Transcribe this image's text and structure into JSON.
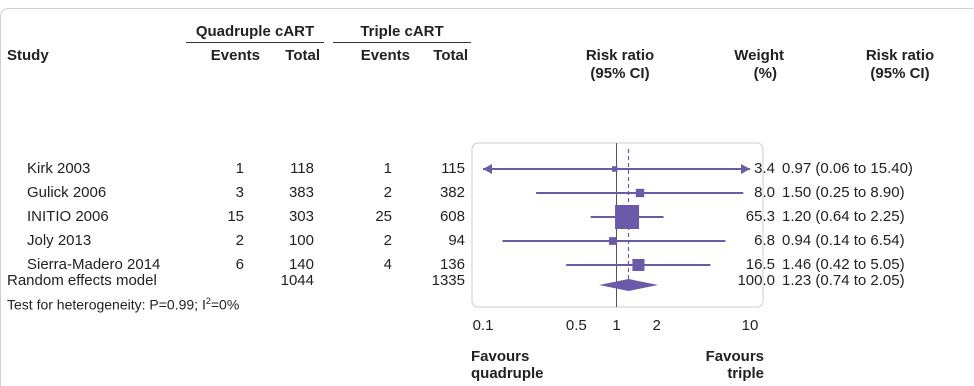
{
  "groups": [
    {
      "label": "Quadruple cART"
    },
    {
      "label": "Triple cART"
    }
  ],
  "headers": {
    "study": "Study",
    "events": "Events",
    "total": "Total",
    "rr_line1": "Risk ratio",
    "rr_line2": "(95% CI)",
    "weight_line1": "Weight",
    "weight_line2": "(%)",
    "rrci_line1": "Risk ratio",
    "rrci_line2": "(95% CI)"
  },
  "rows": [
    {
      "study": "Kirk 2003",
      "q_events": "1",
      "q_total": "118",
      "t_events": "1",
      "t_total": "115",
      "weight": "3.4",
      "ci_text": "0.97 (0.06 to 15.40)"
    },
    {
      "study": "Gulick 2006",
      "q_events": "3",
      "q_total": "383",
      "t_events": "2",
      "t_total": "382",
      "weight": "8.0",
      "ci_text": "1.50 (0.25 to 8.90)"
    },
    {
      "study": "INITIO 2006",
      "q_events": "15",
      "q_total": "303",
      "t_events": "25",
      "t_total": "608",
      "weight": "65.3",
      "ci_text": "1.20 (0.64 to 2.25)"
    },
    {
      "study": "Joly 2013",
      "q_events": "2",
      "q_total": "100",
      "t_events": "2",
      "t_total": "94",
      "weight": "6.8",
      "ci_text": "0.94 (0.14 to 6.54)"
    },
    {
      "study": "Sierra-Madero 2014",
      "q_events": "6",
      "q_total": "140",
      "t_events": "4",
      "t_total": "136",
      "weight": "16.5",
      "ci_text": "1.46 (0.42 to 5.05)"
    }
  ],
  "summary": {
    "label": "Random effects model",
    "q_total": "1044",
    "t_total": "1335",
    "weight": "100.0",
    "ci_text": "1.23 (0.74 to 2.05)"
  },
  "heterogeneity": {
    "text": "Test for heterogeneity: P=0.99; I",
    "sup": "2",
    "rest": "=0%"
  },
  "favours": {
    "left_line1": "Favours",
    "left_line2": "quadruple",
    "right_line1": "Favours",
    "right_line2": "triple"
  },
  "colors": {
    "mark": "#6b5aa8",
    "axis": "#555555",
    "border": "#cccccc"
  },
  "chart_data": {
    "type": "forest",
    "xscale": "log",
    "xlim": [
      0.1,
      10
    ],
    "xticks": [
      0.1,
      0.5,
      1,
      2,
      10
    ],
    "tick_labels": [
      "0.1",
      "0.5",
      "1",
      "2",
      "10"
    ],
    "null_value": 1,
    "studies": [
      {
        "name": "Kirk 2003",
        "rr": 0.97,
        "lower": 0.06,
        "upper": 15.4,
        "weight": 3.4,
        "arrow_left": true,
        "arrow_right": true
      },
      {
        "name": "Gulick 2006",
        "rr": 1.5,
        "lower": 0.25,
        "upper": 8.9,
        "weight": 8.0
      },
      {
        "name": "INITIO 2006",
        "rr": 1.2,
        "lower": 0.64,
        "upper": 2.25,
        "weight": 65.3
      },
      {
        "name": "Joly 2013",
        "rr": 0.94,
        "lower": 0.14,
        "upper": 6.54,
        "weight": 6.8
      },
      {
        "name": "Sierra-Madero 2014",
        "rr": 1.46,
        "lower": 0.42,
        "upper": 5.05,
        "weight": 16.5
      }
    ],
    "pooled": {
      "name": "Random effects model",
      "rr": 1.23,
      "lower": 0.74,
      "upper": 2.05,
      "weight": 100.0
    }
  }
}
